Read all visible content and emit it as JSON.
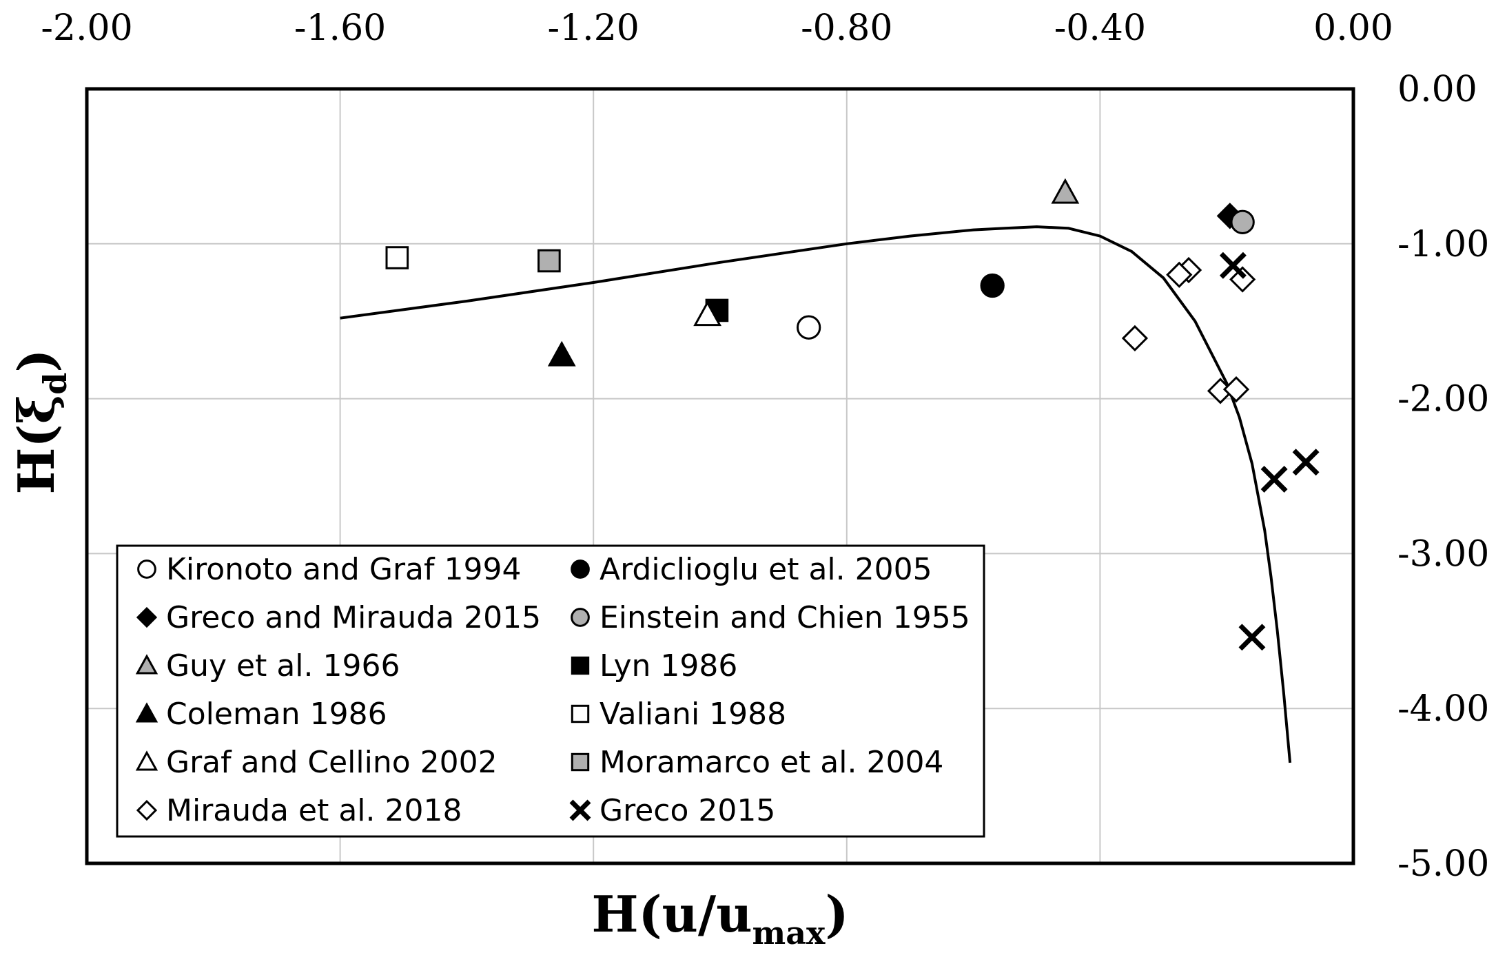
{
  "chart_data": {
    "type": "scatter",
    "title": "",
    "xlabel": {
      "base": "H(u/u",
      "sub": "max",
      "close": ")"
    },
    "ylabel": {
      "base": "H(ξ",
      "sub": "d",
      "close": ")"
    },
    "xlim": [
      -2.0,
      0.0
    ],
    "ylim": [
      -5.0,
      0.0
    ],
    "x_ticks": [
      "-2.00",
      "-1.60",
      "-1.20",
      "-0.80",
      "-0.40",
      "0.00"
    ],
    "y_ticks": [
      "0.00",
      "-1.00",
      "-2.00",
      "-3.00",
      "-4.00",
      "-5.00"
    ],
    "x_axis_position": "top",
    "y_axis_position": "right",
    "grid": true,
    "legend_position": "bottom-left",
    "series": [
      {
        "name": "Kironoto and Graf 1994",
        "marker": "circle",
        "fill": "#ffffff",
        "points": [
          [
            -0.86,
            -1.54
          ]
        ]
      },
      {
        "name": "Ardiclioglu et al. 2005",
        "marker": "circle",
        "fill": "#000000",
        "points": [
          [
            -0.57,
            -1.27
          ]
        ]
      },
      {
        "name": "Greco and Mirauda 2015",
        "marker": "diamond",
        "fill": "#000000",
        "points": [
          [
            -0.195,
            -0.82
          ]
        ]
      },
      {
        "name": "Einstein and Chien 1955",
        "marker": "circle",
        "fill": "#b0b0b0",
        "points": [
          [
            -0.175,
            -0.86
          ]
        ]
      },
      {
        "name": "Guy et al. 1966",
        "marker": "triangle",
        "fill": "#b0b0b0",
        "points": [
          [
            -0.455,
            -0.67
          ]
        ]
      },
      {
        "name": "Lyn 1986",
        "marker": "square",
        "fill": "#000000",
        "points": [
          [
            -1.005,
            -1.43
          ]
        ]
      },
      {
        "name": "Coleman 1986",
        "marker": "triangle",
        "fill": "#000000",
        "points": [
          [
            -1.25,
            -1.72
          ]
        ]
      },
      {
        "name": "Valiani 1988",
        "marker": "square",
        "fill": "#ffffff",
        "points": [
          [
            -1.51,
            -1.09
          ]
        ]
      },
      {
        "name": "Graf and Cellino 2002",
        "marker": "triangle",
        "fill": "#ffffff",
        "points": [
          [
            -1.02,
            -1.46
          ]
        ]
      },
      {
        "name": "Moramarco et al. 2004",
        "marker": "square",
        "fill": "#b0b0b0",
        "points": [
          [
            -1.27,
            -1.11
          ]
        ]
      },
      {
        "name": "Mirauda et al. 2018",
        "marker": "diamond",
        "fill": "#ffffff",
        "points": [
          [
            -0.26,
            -1.17
          ],
          [
            -0.275,
            -1.2
          ],
          [
            -0.175,
            -1.23
          ],
          [
            -0.345,
            -1.61
          ],
          [
            -0.21,
            -1.95
          ],
          [
            -0.185,
            -1.94
          ]
        ]
      },
      {
        "name": "Greco 2015",
        "marker": "x",
        "fill": "#000000",
        "points": [
          [
            -0.19,
            -1.14
          ],
          [
            -0.075,
            -2.41
          ],
          [
            -0.125,
            -2.52
          ],
          [
            -0.16,
            -3.54
          ]
        ]
      }
    ],
    "curve": {
      "name": "fit",
      "x": [
        -1.6,
        -1.4,
        -1.2,
        -1.0,
        -0.8,
        -0.7,
        -0.6,
        -0.55,
        -0.5,
        -0.45,
        -0.4,
        -0.35,
        -0.3,
        -0.25,
        -0.2,
        -0.18,
        -0.16,
        -0.14,
        -0.13,
        -0.12,
        -0.11,
        -0.1
      ],
      "y": [
        -1.48,
        -1.37,
        -1.25,
        -1.12,
        -1.0,
        -0.95,
        -0.91,
        -0.9,
        -0.89,
        -0.9,
        -0.95,
        -1.05,
        -1.22,
        -1.5,
        -1.9,
        -2.12,
        -2.42,
        -2.85,
        -3.15,
        -3.5,
        -3.9,
        -4.35
      ]
    }
  }
}
